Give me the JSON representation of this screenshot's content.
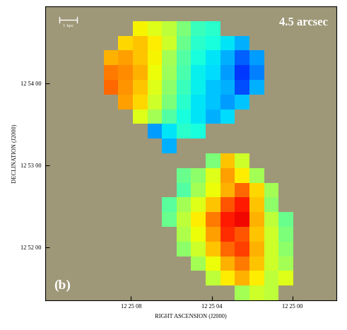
{
  "chart_data": {
    "type": "heatmap",
    "title": "4.5 arcsec",
    "panel_label": "(b)",
    "scale_bar_label": "1 kpc",
    "x_label": "RIGHT ASCENSION (J2000)",
    "y_label": "DECLINATION (J2000)",
    "xlim": [
      184,
      -33
    ],
    "ylim": [
      -39,
      176
    ],
    "xticks": [
      {
        "value": 120,
        "label": "12 25 08"
      },
      {
        "value": 60,
        "label": "12 25 04"
      },
      {
        "value": 0,
        "label": "12 25 00"
      }
    ],
    "yticks": [
      {
        "value": 0,
        "label": "12 52 00"
      },
      {
        "value": 60,
        "label": "12 53 00"
      },
      {
        "value": 120,
        "label": "12 54 00"
      }
    ],
    "clim": [
      0,
      100
    ],
    "cells": [
      [
        null,
        null,
        null,
        null,
        null,
        null,
        null,
        null,
        null,
        null,
        null,
        null,
        null,
        null,
        null,
        null,
        null,
        null,
        null,
        null
      ],
      [
        null,
        null,
        null,
        null,
        null,
        null,
        65,
        62,
        58,
        50,
        42,
        40,
        null,
        null,
        null,
        null,
        null,
        null,
        null,
        null
      ],
      [
        null,
        null,
        null,
        null,
        null,
        68,
        70,
        66,
        60,
        48,
        40,
        38,
        35,
        30,
        null,
        null,
        null,
        null,
        null,
        null
      ],
      [
        null,
        null,
        null,
        null,
        72,
        74,
        70,
        65,
        55,
        45,
        38,
        35,
        30,
        22,
        28,
        null,
        null,
        null,
        null,
        null
      ],
      [
        null,
        null,
        null,
        null,
        78,
        76,
        72,
        64,
        54,
        44,
        36,
        34,
        28,
        18,
        25,
        null,
        null,
        null,
        null,
        null
      ],
      [
        null,
        null,
        null,
        null,
        80,
        75,
        70,
        62,
        52,
        42,
        36,
        32,
        30,
        20,
        30,
        null,
        null,
        null,
        null,
        null
      ],
      [
        null,
        null,
        null,
        null,
        null,
        74,
        68,
        60,
        50,
        40,
        35,
        32,
        28,
        32,
        null,
        null,
        null,
        null,
        null,
        null
      ],
      [
        null,
        null,
        null,
        null,
        null,
        null,
        62,
        55,
        45,
        38,
        35,
        30,
        34,
        null,
        null,
        null,
        null,
        null,
        null,
        null
      ],
      [
        null,
        null,
        null,
        null,
        null,
        null,
        null,
        28,
        35,
        40,
        38,
        null,
        null,
        null,
        null,
        null,
        null,
        null,
        null,
        null
      ],
      [
        null,
        null,
        null,
        null,
        null,
        null,
        null,
        null,
        30,
        null,
        null,
        null,
        null,
        null,
        null,
        null,
        null,
        null,
        null,
        null
      ],
      [
        null,
        null,
        null,
        null,
        null,
        null,
        null,
        null,
        null,
        null,
        null,
        50,
        70,
        60,
        null,
        null,
        null,
        null,
        null,
        null
      ],
      [
        null,
        null,
        null,
        null,
        null,
        null,
        null,
        null,
        null,
        48,
        52,
        62,
        74,
        66,
        55,
        null,
        null,
        null,
        null,
        null
      ],
      [
        null,
        null,
        null,
        null,
        null,
        null,
        null,
        null,
        null,
        45,
        55,
        64,
        72,
        80,
        68,
        55,
        null,
        null,
        null,
        null
      ],
      [
        null,
        null,
        null,
        null,
        null,
        null,
        null,
        null,
        46,
        55,
        62,
        70,
        82,
        88,
        70,
        52,
        null,
        null,
        null,
        null
      ],
      [
        null,
        null,
        null,
        null,
        null,
        null,
        null,
        null,
        48,
        58,
        66,
        78,
        88,
        90,
        72,
        58,
        48,
        null,
        null,
        null
      ],
      [
        null,
        null,
        null,
        null,
        null,
        null,
        null,
        null,
        null,
        56,
        64,
        74,
        86,
        82,
        70,
        60,
        50,
        null,
        null,
        null
      ],
      [
        null,
        null,
        null,
        null,
        null,
        null,
        null,
        null,
        null,
        52,
        60,
        70,
        80,
        84,
        72,
        60,
        52,
        null,
        null,
        null
      ],
      [
        null,
        null,
        null,
        null,
        null,
        null,
        null,
        null,
        null,
        null,
        55,
        64,
        72,
        78,
        70,
        60,
        55,
        null,
        null,
        null
      ],
      [
        null,
        null,
        null,
        null,
        null,
        null,
        null,
        null,
        null,
        null,
        null,
        58,
        66,
        72,
        66,
        58,
        62,
        null,
        null,
        null
      ],
      [
        null,
        null,
        null,
        null,
        null,
        null,
        null,
        null,
        null,
        null,
        null,
        null,
        null,
        55,
        60,
        58,
        null,
        null,
        null,
        null
      ]
    ]
  }
}
